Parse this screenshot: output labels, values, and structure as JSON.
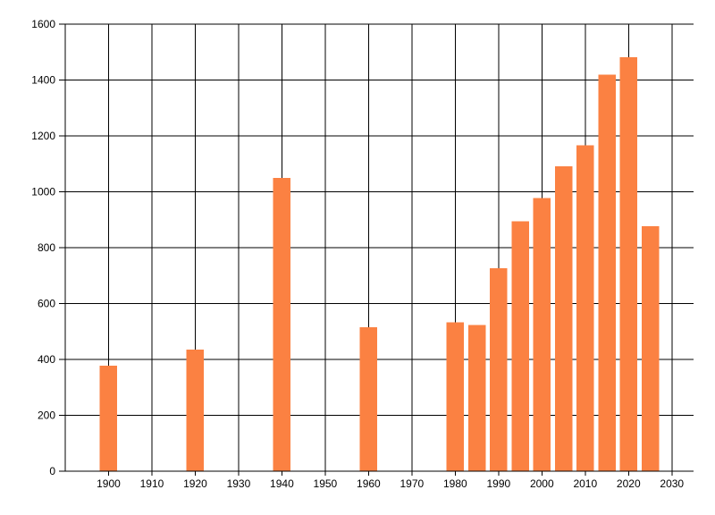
{
  "chart_data": {
    "type": "bar",
    "title": "",
    "xlabel": "",
    "ylabel": "",
    "x": [
      1900,
      1920,
      1940,
      1960,
      1980,
      1985,
      1990,
      1995,
      2000,
      2005,
      2010,
      2015,
      2020,
      2025
    ],
    "values": [
      377,
      436,
      1050,
      515,
      533,
      523,
      727,
      895,
      978,
      1092,
      1166,
      1420,
      1481,
      877
    ],
    "xlim": [
      1890,
      2035
    ],
    "ylim": [
      0,
      1600
    ],
    "x_ticks": [
      1900,
      1910,
      1920,
      1930,
      1940,
      1950,
      1960,
      1970,
      1980,
      1990,
      2000,
      2010,
      2020,
      2030
    ],
    "y_ticks": [
      0,
      200,
      400,
      600,
      800,
      1000,
      1200,
      1400,
      1600
    ],
    "grid": true,
    "legend_position": "none",
    "bar_color": "#fb8142",
    "grid_color": "#000000",
    "axis_color": "#000000",
    "label_color": "#000000",
    "background": "#ffffff"
  }
}
